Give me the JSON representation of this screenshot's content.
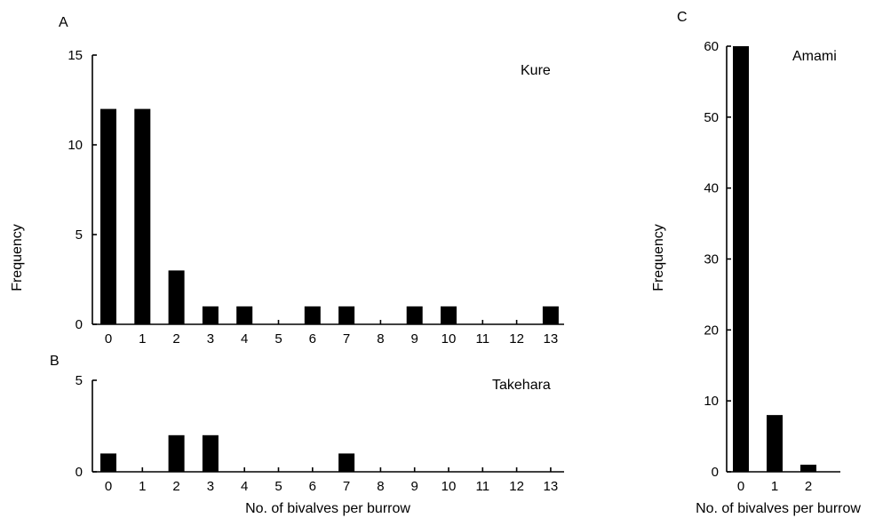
{
  "chart_data": [
    {
      "panel": "A",
      "type": "bar",
      "site_label": "Kure",
      "categories": [
        "0",
        "1",
        "2",
        "3",
        "4",
        "5",
        "6",
        "7",
        "8",
        "9",
        "10",
        "11",
        "12",
        "13"
      ],
      "values": [
        12,
        12,
        3,
        1,
        1,
        0,
        1,
        1,
        0,
        1,
        1,
        0,
        0,
        1
      ],
      "ylabel": "Frequency",
      "xlabel": "",
      "ylim": [
        0,
        15
      ],
      "yticks": [
        "0",
        "5",
        "10",
        "15"
      ],
      "grid": false
    },
    {
      "panel": "B",
      "type": "bar",
      "site_label": "Takehara",
      "categories": [
        "0",
        "1",
        "2",
        "3",
        "4",
        "5",
        "6",
        "7",
        "8",
        "9",
        "10",
        "11",
        "12",
        "13"
      ],
      "values": [
        1,
        0,
        2,
        2,
        0,
        0,
        0,
        1,
        0,
        0,
        0,
        0,
        0,
        0
      ],
      "ylabel": "",
      "xlabel": "No. of bivalves per burrow",
      "ylim": [
        0,
        5
      ],
      "yticks": [
        "0",
        "5"
      ],
      "grid": false
    },
    {
      "panel": "C",
      "type": "bar",
      "site_label": "Amami",
      "categories": [
        "0",
        "1",
        "2"
      ],
      "values": [
        60,
        8,
        1
      ],
      "ylabel": "Frequency",
      "xlabel": "No. of bivalves per burrow",
      "ylim": [
        0,
        60
      ],
      "yticks": [
        "0",
        "10",
        "20",
        "30",
        "40",
        "50",
        "60"
      ],
      "grid": false
    }
  ]
}
